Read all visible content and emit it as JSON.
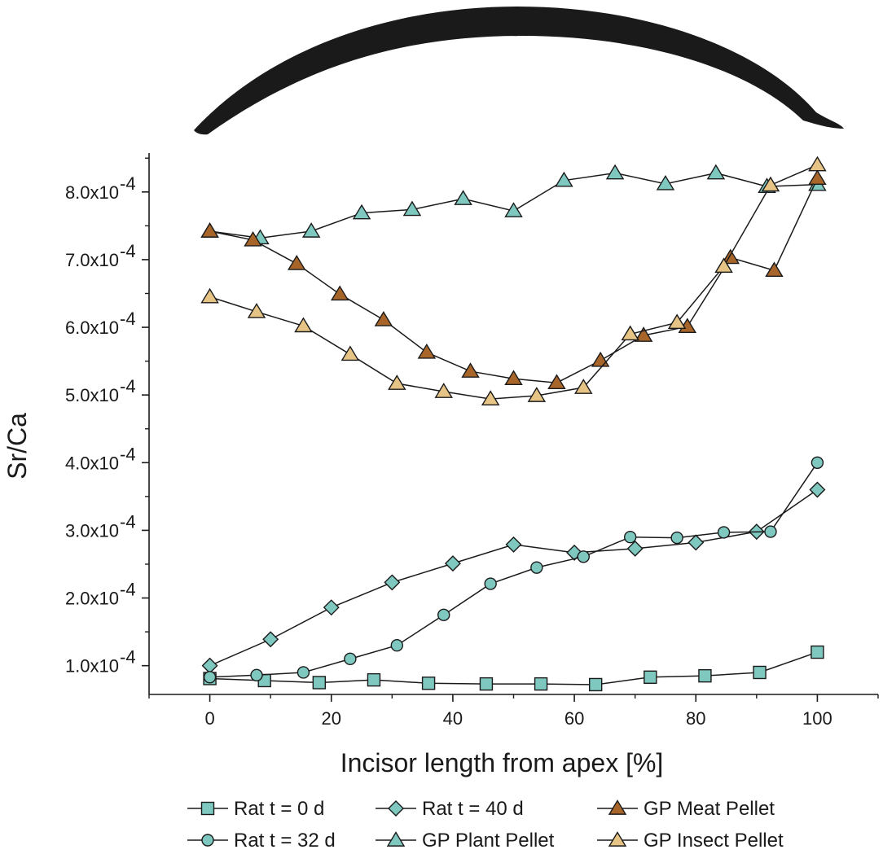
{
  "chart_data": {
    "type": "line",
    "title": "",
    "xlabel": "Incisor length from apex [%]",
    "ylabel": "Sr/Ca",
    "xlim": [
      -10,
      110
    ],
    "ylim": [
      5.75e-05,
      0.0008575
    ],
    "x_ticks": [
      0,
      20,
      40,
      60,
      80,
      100
    ],
    "y_ticks": [
      {
        "value": 0.0001,
        "mantissa": "1.0x10",
        "exponent": "-4"
      },
      {
        "value": 0.0002,
        "mantissa": "2.0x10",
        "exponent": "-4"
      },
      {
        "value": 0.0003,
        "mantissa": "3.0x10",
        "exponent": "-4"
      },
      {
        "value": 0.0004,
        "mantissa": "4.0x10",
        "exponent": "-4"
      },
      {
        "value": 0.0005,
        "mantissa": "5.0x10",
        "exponent": "-4"
      },
      {
        "value": 0.0006,
        "mantissa": "6.0x10",
        "exponent": "-4"
      },
      {
        "value": 0.0007,
        "mantissa": "7.0x10",
        "exponent": "-4"
      },
      {
        "value": 0.0008,
        "mantissa": "8.0x10",
        "exponent": "-4"
      }
    ],
    "grid": false,
    "legend_position": "bottom",
    "colors": {
      "teal": "#7ec8bf",
      "brown": "#a8652a",
      "tan": "#e6c485",
      "line": "#1a1a1a"
    },
    "series": [
      {
        "name": "Rat t = 0 d",
        "marker": "square",
        "color": "#7ec8bf",
        "x": [
          0,
          9,
          18,
          27,
          36,
          45.5,
          54.5,
          63.5,
          72.5,
          81.5,
          90.5,
          100
        ],
        "y": [
          8.1e-05,
          7.8e-05,
          7.5e-05,
          7.9e-05,
          7.4e-05,
          7.3e-05,
          7.3e-05,
          7.2e-05,
          8.3e-05,
          8.5e-05,
          9e-05,
          0.00012
        ]
      },
      {
        "name": "Rat t = 40 d",
        "marker": "diamond",
        "color": "#7ec8bf",
        "x": [
          0,
          10,
          20,
          30,
          40,
          50,
          60,
          70,
          80,
          90,
          100
        ],
        "y": [
          0.0001,
          0.000139,
          0.000186,
          0.000223,
          0.000251,
          0.000279,
          0.000267,
          0.000273,
          0.000282,
          0.000298,
          0.00036
        ]
      },
      {
        "name": "Rat t = 32 d",
        "marker": "circle",
        "color": "#7ec8bf",
        "x": [
          0,
          7.7,
          15.4,
          23.1,
          30.8,
          38.5,
          46.2,
          53.8,
          61.5,
          69.2,
          76.9,
          84.6,
          92.3,
          100
        ],
        "y": [
          8.3e-05,
          8.6e-05,
          9e-05,
          0.00011,
          0.00013,
          0.000175,
          0.000221,
          0.000245,
          0.000261,
          0.00029,
          0.000289,
          0.000297,
          0.000298,
          0.0004
        ]
      },
      {
        "name": "GP Plant Pellet",
        "marker": "triangle",
        "color": "#7ec8bf",
        "x": [
          0,
          8.3,
          16.7,
          25,
          33.3,
          41.7,
          50,
          58.3,
          66.7,
          75,
          83.3,
          91.7,
          100
        ],
        "y": [
          0.000742,
          0.000732,
          0.000742,
          0.000769,
          0.000774,
          0.00079,
          0.000772,
          0.000817,
          0.000828,
          0.000812,
          0.000828,
          0.000808,
          0.000811
        ]
      },
      {
        "name": "GP Meat Pellet",
        "marker": "triangle",
        "color": "#a8652a",
        "x": [
          0,
          7.1,
          14.3,
          21.4,
          28.6,
          35.7,
          42.9,
          50,
          57.1,
          64.3,
          71.4,
          78.6,
          85.7,
          92.9,
          100
        ],
        "y": [
          0.000742,
          0.000729,
          0.000694,
          0.000649,
          0.000611,
          0.000563,
          0.000535,
          0.000524,
          0.000518,
          0.000551,
          0.000588,
          0.000601,
          0.000703,
          0.000684,
          0.00082
        ]
      },
      {
        "name": "GP Insect Pellet",
        "marker": "triangle",
        "color": "#e6c485",
        "x": [
          0,
          7.7,
          15.4,
          23.1,
          30.8,
          38.5,
          46.2,
          53.8,
          61.5,
          69.2,
          76.9,
          84.6,
          92.3,
          100
        ],
        "y": [
          0.000645,
          0.000623,
          0.000602,
          0.00056,
          0.000517,
          0.000505,
          0.000494,
          0.000499,
          0.000511,
          0.00059,
          0.000607,
          0.00069,
          0.00081,
          0.00084
        ]
      }
    ],
    "legend_order": [
      "Rat t = 0 d",
      "Rat t = 40 d",
      "GP Meat Pellet",
      "Rat t = 32 d",
      "GP Plant Pellet",
      "GP Insect Pellet"
    ]
  }
}
